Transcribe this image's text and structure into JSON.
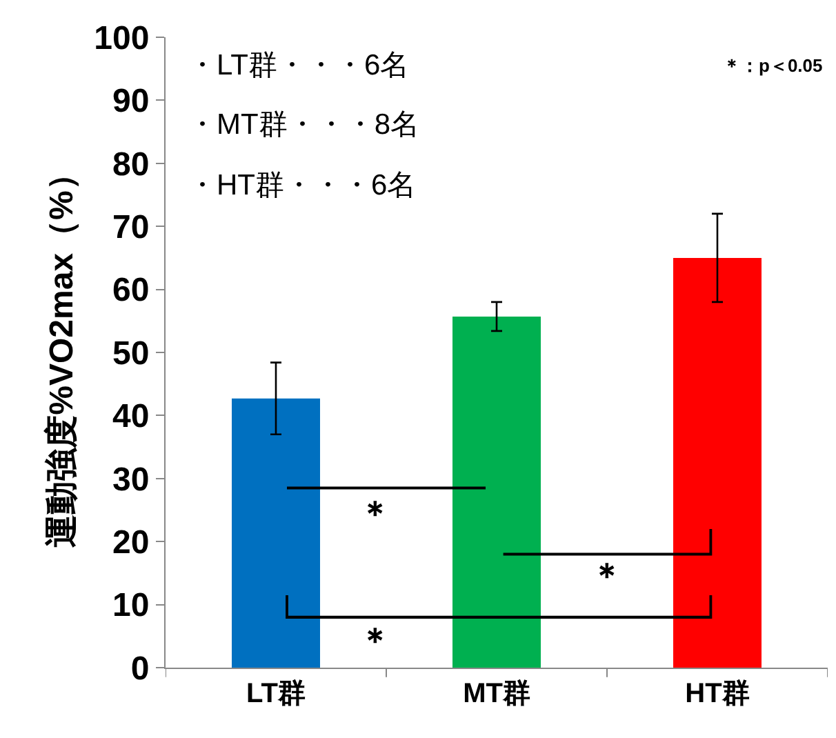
{
  "chart_data": {
    "type": "bar",
    "ylabel": "運動強度%VO2max（%）",
    "categories": [
      "LT群",
      "MT群",
      "HT群"
    ],
    "values": [
      42.7,
      55.7,
      65
    ],
    "colors": [
      "#0070c0",
      "#00b050",
      "#ff0000"
    ],
    "errors": [
      5.7,
      2.3,
      7
    ],
    "ylim": [
      0,
      100
    ],
    "yticks": [
      0,
      10,
      20,
      30,
      40,
      50,
      60,
      70,
      80,
      90,
      100
    ],
    "grid": false,
    "annotations": [
      "・LT群・・・6名",
      "・MT群・・・8名",
      "・HT群・・・6名",
      "＊：p＜0.05",
      "＊",
      "＊",
      "＊"
    ]
  }
}
